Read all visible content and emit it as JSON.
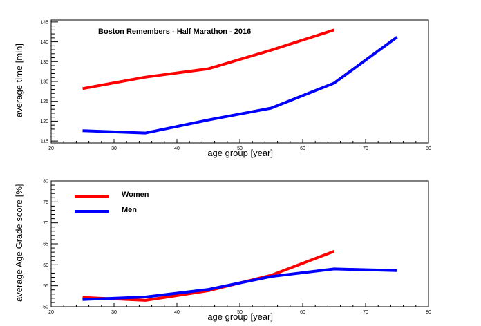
{
  "chart_data": [
    {
      "type": "line",
      "title": "Boston Remembers - Half Marathon - 2016",
      "xlabel": "age group [year]",
      "ylabel": "average time [min]",
      "xlim": [
        20,
        80
      ],
      "ylim": [
        114.5,
        145.5
      ],
      "xticks": [
        20,
        30,
        40,
        50,
        60,
        70,
        80
      ],
      "yticks": [
        115,
        120,
        125,
        130,
        135,
        140,
        145
      ],
      "series": [
        {
          "color": "#ff0000",
          "points": [
            [
              25,
              128.2
            ],
            [
              35,
              131.1
            ],
            [
              45,
              133.2
            ],
            [
              55,
              137.9
            ],
            [
              65,
              143.0
            ]
          ]
        },
        {
          "color": "#0000ff",
          "points": [
            [
              25,
              117.6
            ],
            [
              35,
              117.0
            ],
            [
              45,
              120.3
            ],
            [
              55,
              123.3
            ],
            [
              65,
              129.6
            ],
            [
              75,
              141.2
            ]
          ]
        }
      ]
    },
    {
      "type": "line",
      "title": "",
      "xlabel": "age group [year]",
      "ylabel": "average Age Grade score [%]",
      "xlim": [
        20,
        80
      ],
      "ylim": [
        50,
        80
      ],
      "xticks": [
        20,
        30,
        40,
        50,
        60,
        70,
        80
      ],
      "yticks": [
        50,
        55,
        60,
        65,
        70,
        75,
        80
      ],
      "legend_position": "top-left",
      "series": [
        {
          "name": "Women",
          "color": "#ff0000",
          "points": [
            [
              25,
              52.2
            ],
            [
              35,
              51.5
            ],
            [
              45,
              53.8
            ],
            [
              55,
              57.5
            ],
            [
              65,
              63.2
            ]
          ]
        },
        {
          "name": "Men",
          "color": "#0000ff",
          "points": [
            [
              25,
              51.7
            ],
            [
              35,
              52.3
            ],
            [
              45,
              54.1
            ],
            [
              55,
              57.2
            ],
            [
              65,
              59.0
            ],
            [
              75,
              58.6
            ]
          ]
        }
      ]
    }
  ]
}
